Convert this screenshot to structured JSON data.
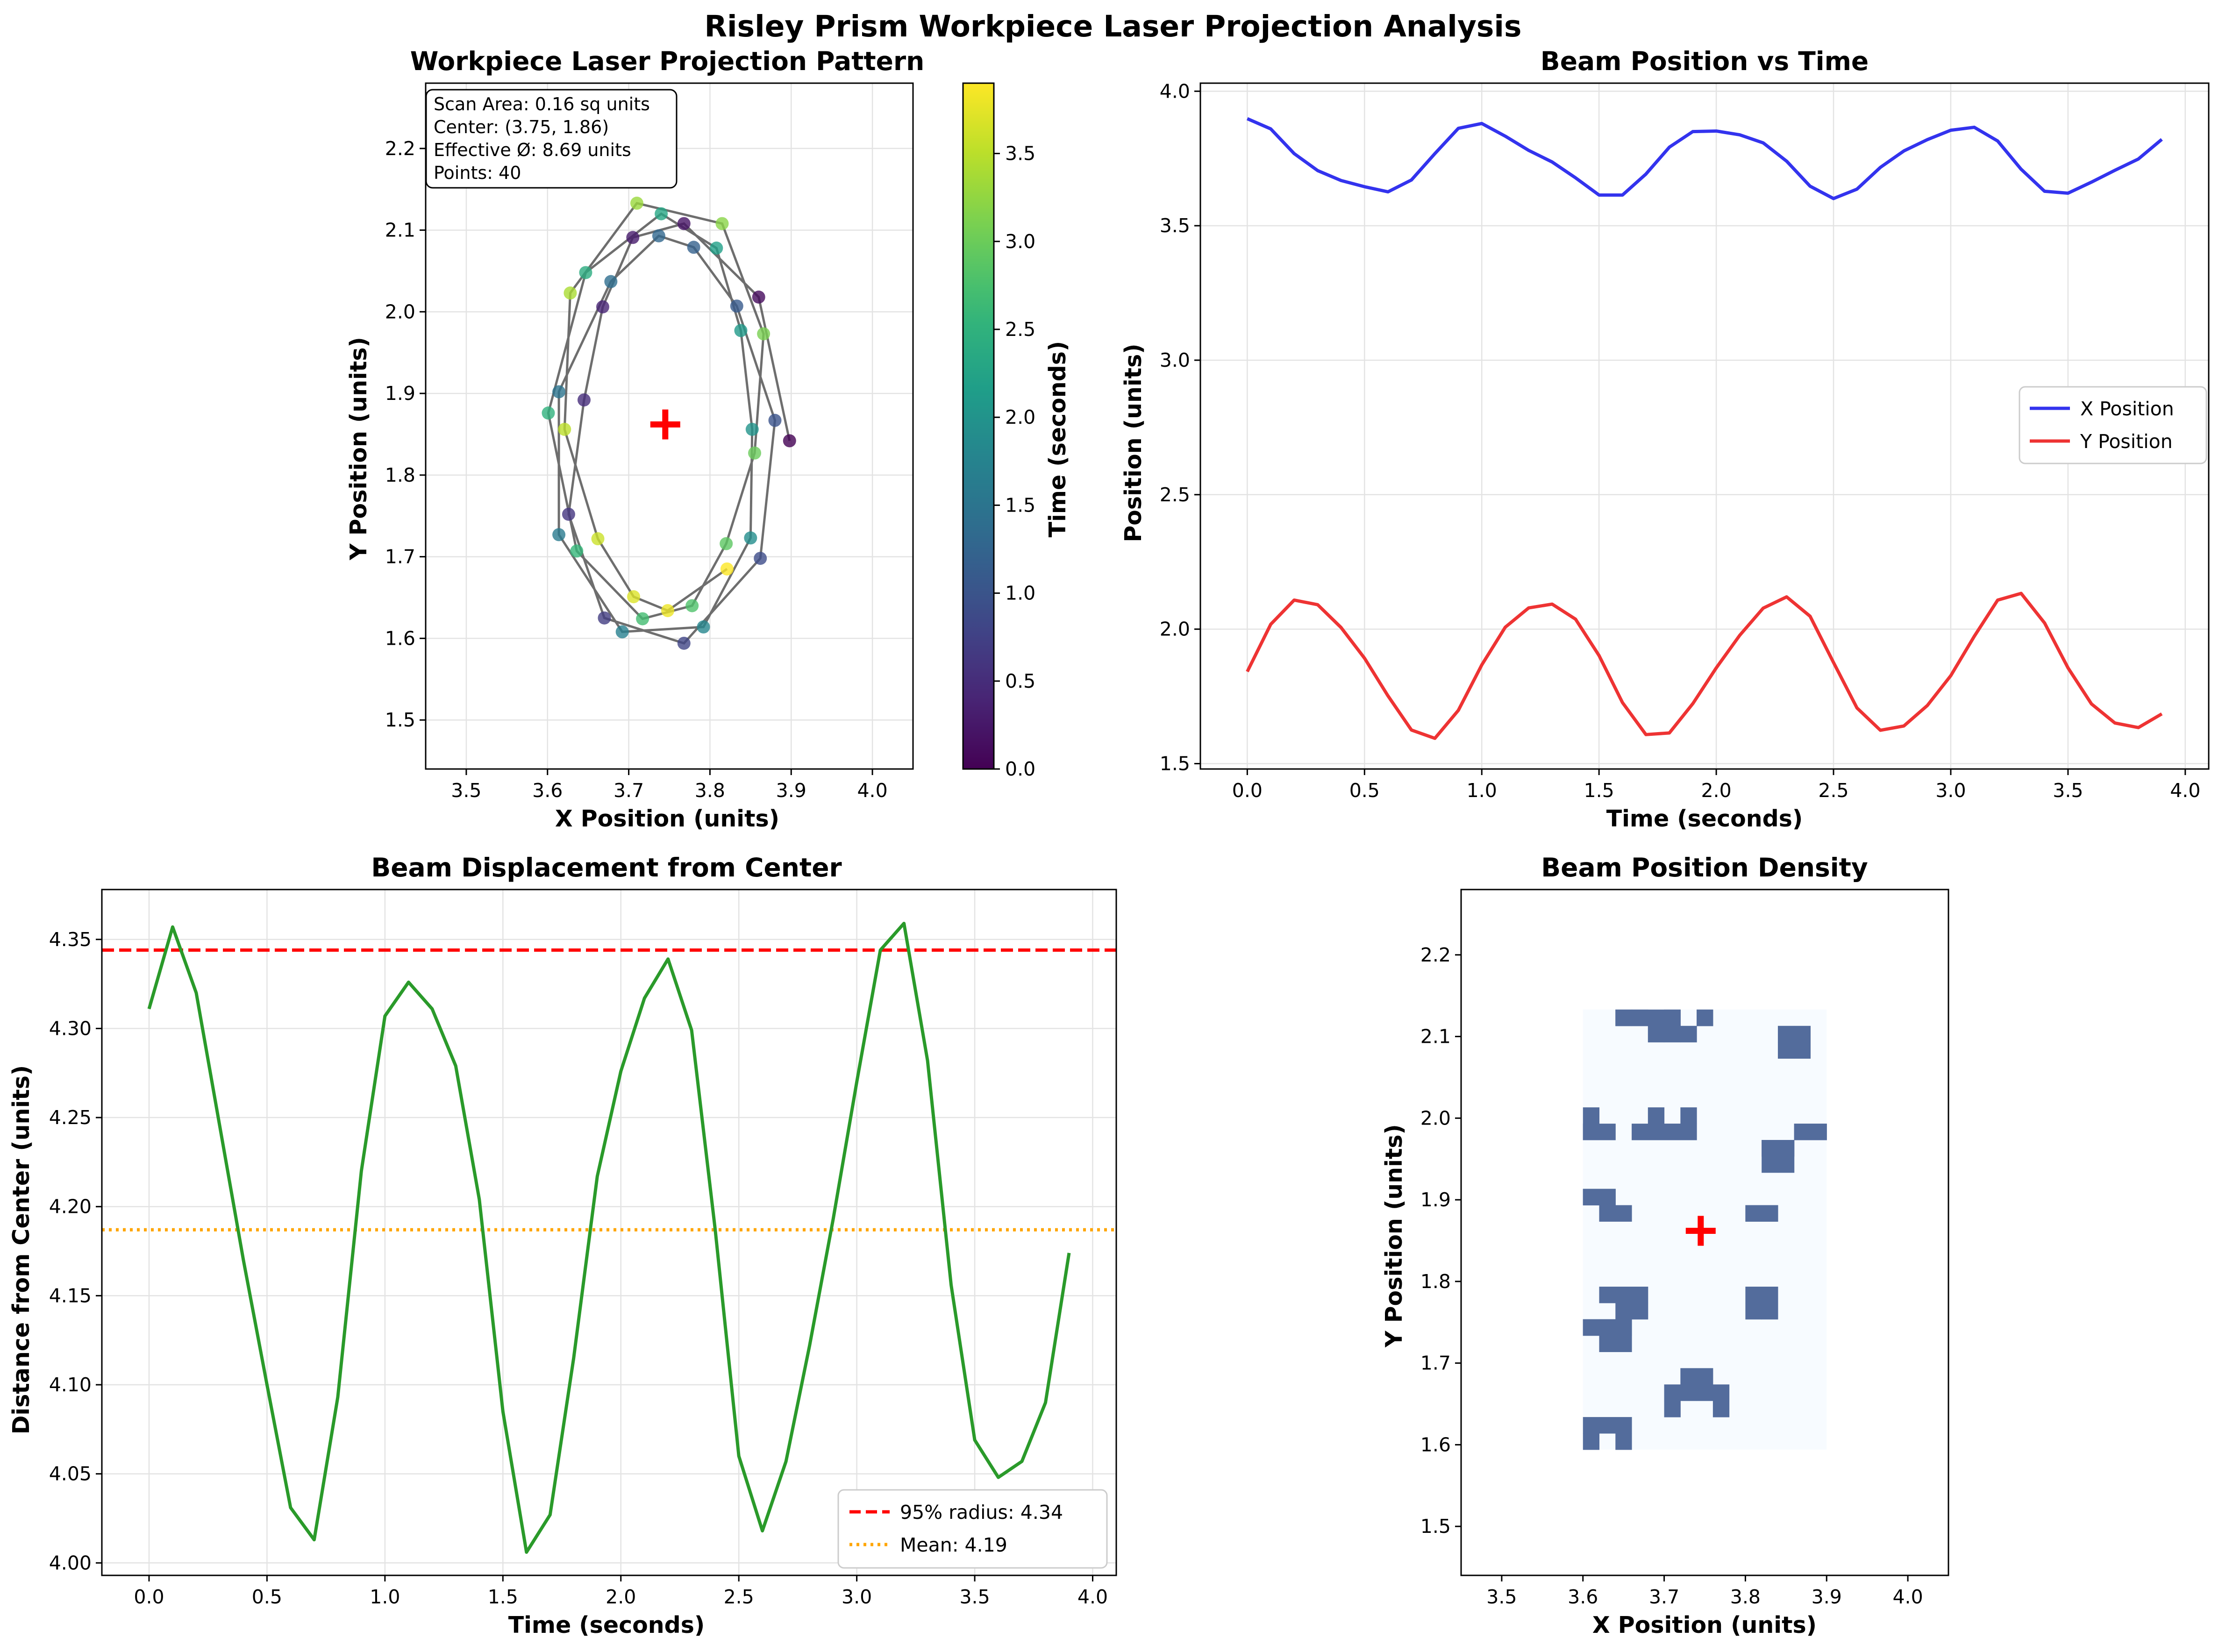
{
  "figure": {
    "title": "Risley Prism Workpiece Laser Projection Analysis"
  },
  "chart_data": [
    {
      "id": "projection",
      "type": "scatter",
      "title": "Workpiece Laser Projection Pattern",
      "xlabel": "X Position (units)",
      "ylabel": "Y Position (units)",
      "xlim": [
        3.45,
        4.05
      ],
      "ylim": [
        1.44,
        2.28
      ],
      "xticks": [
        3.5,
        3.6,
        3.7,
        3.8,
        3.9,
        4.0
      ],
      "yticks": [
        1.5,
        1.6,
        1.7,
        1.8,
        1.9,
        2.0,
        2.1,
        2.2
      ],
      "grid": true,
      "center_marker": {
        "x": 3.745,
        "y": 1.862,
        "color": "#ff0000",
        "marker": "plus"
      },
      "path_color": "#555555",
      "colormap": "viridis",
      "colorbar": {
        "label": "Time (seconds)",
        "range": [
          0.0,
          3.9
        ],
        "ticks": [
          0.0,
          0.5,
          1.0,
          1.5,
          2.0,
          2.5,
          3.0,
          3.5
        ]
      },
      "info_box": {
        "lines": [
          "Scan Area: 0.16 sq units",
          "Center: (3.75, 1.86)",
          "Effective Ø: 8.69 units",
          "Points: 40"
        ]
      },
      "points": [
        {
          "t": 0.0,
          "x": 3.898,
          "y": 1.842
        },
        {
          "t": 0.1,
          "x": 3.86,
          "y": 2.018
        },
        {
          "t": 0.2,
          "x": 3.768,
          "y": 2.108
        },
        {
          "t": 0.3,
          "x": 3.705,
          "y": 2.091
        },
        {
          "t": 0.4,
          "x": 3.668,
          "y": 2.006
        },
        {
          "t": 0.5,
          "x": 3.645,
          "y": 1.892
        },
        {
          "t": 0.6,
          "x": 3.626,
          "y": 1.752
        },
        {
          "t": 0.7,
          "x": 3.67,
          "y": 1.625
        },
        {
          "t": 0.8,
          "x": 3.768,
          "y": 1.594
        },
        {
          "t": 0.9,
          "x": 3.862,
          "y": 1.698
        },
        {
          "t": 1.0,
          "x": 3.88,
          "y": 1.867
        },
        {
          "t": 1.1,
          "x": 3.833,
          "y": 2.007
        },
        {
          "t": 1.2,
          "x": 3.78,
          "y": 2.079
        },
        {
          "t": 1.3,
          "x": 3.737,
          "y": 2.093
        },
        {
          "t": 1.4,
          "x": 3.678,
          "y": 2.037
        },
        {
          "t": 1.5,
          "x": 3.614,
          "y": 1.902
        },
        {
          "t": 1.6,
          "x": 3.614,
          "y": 1.727
        },
        {
          "t": 1.7,
          "x": 3.692,
          "y": 1.608
        },
        {
          "t": 1.8,
          "x": 3.792,
          "y": 1.614
        },
        {
          "t": 1.9,
          "x": 3.85,
          "y": 1.723
        },
        {
          "t": 2.0,
          "x": 3.852,
          "y": 1.856
        },
        {
          "t": 2.1,
          "x": 3.838,
          "y": 1.977
        },
        {
          "t": 2.2,
          "x": 3.808,
          "y": 2.078
        },
        {
          "t": 2.3,
          "x": 3.74,
          "y": 2.12
        },
        {
          "t": 2.4,
          "x": 3.647,
          "y": 2.048
        },
        {
          "t": 2.5,
          "x": 3.601,
          "y": 1.876
        },
        {
          "t": 2.6,
          "x": 3.636,
          "y": 1.707
        },
        {
          "t": 2.7,
          "x": 3.717,
          "y": 1.624
        },
        {
          "t": 2.8,
          "x": 3.778,
          "y": 1.64
        },
        {
          "t": 2.9,
          "x": 3.82,
          "y": 1.716
        },
        {
          "t": 3.0,
          "x": 3.855,
          "y": 1.827
        },
        {
          "t": 3.1,
          "x": 3.866,
          "y": 1.973
        },
        {
          "t": 3.2,
          "x": 3.815,
          "y": 2.108
        },
        {
          "t": 3.3,
          "x": 3.71,
          "y": 2.133
        },
        {
          "t": 3.4,
          "x": 3.628,
          "y": 2.023
        },
        {
          "t": 3.5,
          "x": 3.621,
          "y": 1.856
        },
        {
          "t": 3.6,
          "x": 3.662,
          "y": 1.722
        },
        {
          "t": 3.7,
          "x": 3.706,
          "y": 1.651
        },
        {
          "t": 3.8,
          "x": 3.748,
          "y": 1.634
        },
        {
          "t": 3.9,
          "x": 3.821,
          "y": 1.685
        }
      ]
    },
    {
      "id": "position_time",
      "type": "line",
      "title": "Beam Position vs Time",
      "xlabel": "Time (seconds)",
      "ylabel": "Position (units)",
      "xlim": [
        -0.2,
        4.1
      ],
      "ylim": [
        1.48,
        4.03
      ],
      "xticks": [
        0.0,
        0.5,
        1.0,
        1.5,
        2.0,
        2.5,
        3.0,
        3.5,
        4.0
      ],
      "yticks": [
        1.5,
        2.0,
        2.5,
        3.0,
        3.5,
        4.0
      ],
      "grid": true,
      "legend": "center-right",
      "x": [
        0.0,
        0.1,
        0.2,
        0.3,
        0.4,
        0.5,
        0.6,
        0.7,
        0.8,
        0.9,
        1.0,
        1.1,
        1.2,
        1.3,
        1.4,
        1.5,
        1.6,
        1.7,
        1.8,
        1.9,
        2.0,
        2.1,
        2.2,
        2.3,
        2.4,
        2.5,
        2.6,
        2.7,
        2.8,
        2.9,
        3.0,
        3.1,
        3.2,
        3.3,
        3.4,
        3.5,
        3.6,
        3.7,
        3.8,
        3.9
      ],
      "series": [
        {
          "name": "X Position",
          "color": "#3333ee",
          "values": [
            3.898,
            3.86,
            3.768,
            3.705,
            3.668,
            3.645,
            3.626,
            3.67,
            3.768,
            3.862,
            3.88,
            3.833,
            3.78,
            3.737,
            3.678,
            3.614,
            3.614,
            3.692,
            3.792,
            3.85,
            3.852,
            3.838,
            3.808,
            3.74,
            3.647,
            3.601,
            3.636,
            3.717,
            3.778,
            3.82,
            3.855,
            3.866,
            3.815,
            3.71,
            3.628,
            3.621,
            3.662,
            3.706,
            3.748,
            3.821
          ]
        },
        {
          "name": "Y Position",
          "color": "#ee3333",
          "values": [
            1.842,
            2.018,
            2.108,
            2.091,
            2.006,
            1.892,
            1.752,
            1.625,
            1.594,
            1.698,
            1.867,
            2.007,
            2.079,
            2.093,
            2.037,
            1.902,
            1.727,
            1.608,
            1.614,
            1.723,
            1.856,
            1.977,
            2.078,
            2.12,
            2.048,
            1.876,
            1.707,
            1.624,
            1.64,
            1.716,
            1.827,
            1.973,
            2.108,
            2.133,
            2.023,
            1.856,
            1.722,
            1.651,
            1.634,
            1.685
          ]
        }
      ]
    },
    {
      "id": "displacement",
      "type": "line",
      "title": "Beam Displacement from Center",
      "xlabel": "Time (seconds)",
      "ylabel": "Distance from Center (units)",
      "xlim": [
        -0.2,
        4.1
      ],
      "ylim": [
        3.993,
        4.378
      ],
      "xticks": [
        0.0,
        0.5,
        1.0,
        1.5,
        2.0,
        2.5,
        3.0,
        3.5,
        4.0
      ],
      "yticks": [
        4.0,
        4.05,
        4.1,
        4.15,
        4.2,
        4.25,
        4.3,
        4.35
      ],
      "grid": true,
      "legend": "lower-right",
      "x": [
        0.0,
        0.1,
        0.2,
        0.3,
        0.4,
        0.5,
        0.6,
        0.7,
        0.8,
        0.9,
        1.0,
        1.1,
        1.2,
        1.3,
        1.4,
        1.5,
        1.6,
        1.7,
        1.8,
        1.9,
        2.0,
        2.1,
        2.2,
        2.3,
        2.4,
        2.5,
        2.6,
        2.7,
        2.8,
        2.9,
        3.0,
        3.1,
        3.2,
        3.3,
        3.4,
        3.5,
        3.6,
        3.7,
        3.8,
        3.9
      ],
      "series": [
        {
          "name": "",
          "color": "#2a9a2a",
          "values": [
            4.311,
            4.357,
            4.32,
            4.245,
            4.17,
            4.1,
            4.031,
            4.013,
            4.093,
            4.22,
            4.307,
            4.326,
            4.311,
            4.279,
            4.204,
            4.085,
            4.006,
            4.027,
            4.115,
            4.217,
            4.276,
            4.317,
            4.339,
            4.299,
            4.187,
            4.06,
            4.018,
            4.057,
            4.122,
            4.193,
            4.27,
            4.344,
            4.359,
            4.282,
            4.156,
            4.069,
            4.048,
            4.057,
            4.09,
            4.174
          ]
        }
      ],
      "reference_lines": [
        {
          "label": "95% radius: 4.34",
          "value": 4.344,
          "color": "#ff0000",
          "style": "dashed"
        },
        {
          "label": "Mean: 4.19",
          "value": 4.187,
          "color": "#ffa500",
          "style": "dotted"
        }
      ]
    },
    {
      "id": "density",
      "type": "heatmap",
      "title": "Beam Position Density",
      "xlabel": "X Position (units)",
      "ylabel": "Y Position (units)",
      "xlim": [
        3.45,
        4.05
      ],
      "ylim": [
        1.44,
        2.28
      ],
      "xticks": [
        3.5,
        3.6,
        3.7,
        3.8,
        3.9,
        4.0
      ],
      "yticks": [
        1.5,
        1.6,
        1.7,
        1.8,
        1.9,
        2.0,
        2.1,
        2.2
      ],
      "center_marker": {
        "x": 3.745,
        "y": 1.862,
        "color": "#ff0000",
        "marker": "plus"
      },
      "x_range": [
        3.6,
        3.9
      ],
      "y_range": [
        1.594,
        2.133
      ],
      "bins": [
        15,
        27
      ],
      "empty_color": "#f7fbff",
      "filled_color": "#536c9c",
      "cells": [
        [
          0,
          11
        ],
        [
          0,
          12
        ],
        [
          0,
          13
        ],
        [
          1,
          12
        ],
        [
          0,
          19
        ],
        [
          0,
          20
        ],
        [
          1,
          19
        ],
        [
          1,
          20
        ],
        [
          1,
          21
        ],
        [
          2,
          21
        ],
        [
          1,
          29
        ],
        [
          2,
          30
        ],
        [
          2,
          31
        ],
        [
          3,
          30
        ],
        [
          3,
          31
        ],
        [
          5,
          40
        ],
        [
          5,
          41
        ],
        [
          6,
          39
        ],
        [
          6,
          40
        ],
        [
          7,
          39
        ],
        [
          7,
          40
        ],
        [
          8,
          40
        ],
        [
          8,
          41
        ],
        [
          3,
          12
        ],
        [
          2,
          0
        ],
        [
          2,
          1
        ],
        [
          3,
          0
        ],
        [
          3,
          1
        ],
        [
          4,
          1
        ],
        [
          4,
          2
        ],
        [
          5,
          3
        ],
        [
          6,
          3
        ],
        [
          7,
          0
        ],
        [
          7,
          1
        ],
        [
          5,
          0
        ],
        [
          5,
          1
        ],
        [
          0,
          44
        ],
        [
          0,
          45
        ],
        [
          1,
          44
        ],
        [
          2,
          44
        ],
        [
          2,
          45
        ],
        [
          0,
          33
        ],
        [
          0,
          34
        ],
        [
          1,
          33
        ],
        [
          1,
          34
        ],
        [
          1,
          35
        ],
        [
          2,
          33
        ],
        [
          2,
          34
        ],
        [
          2,
          35
        ],
        [
          4,
          11
        ],
        [
          4,
          12
        ],
        [
          5,
          12
        ],
        [
          5,
          13
        ],
        [
          6,
          11
        ],
        [
          6,
          12
        ],
        [
          11,
          14
        ],
        [
          11,
          15
        ],
        [
          11,
          16
        ],
        [
          12,
          14
        ],
        [
          12,
          15
        ],
        [
          12,
          16
        ],
        [
          10,
          21
        ],
        [
          10,
          22
        ],
        [
          11,
          21
        ],
        [
          11,
          22
        ],
        [
          10,
          30
        ],
        [
          11,
          30
        ],
        [
          10,
          31
        ],
        [
          11,
          31
        ],
        [
          12,
          3
        ],
        [
          13,
          3
        ],
        [
          12,
          4
        ],
        [
          13,
          4
        ],
        [
          14,
          12
        ],
        [
          14,
          13
        ],
        [
          13,
          12
        ],
        [
          13,
          13
        ]
      ]
    }
  ],
  "density_legend_note": ""
}
